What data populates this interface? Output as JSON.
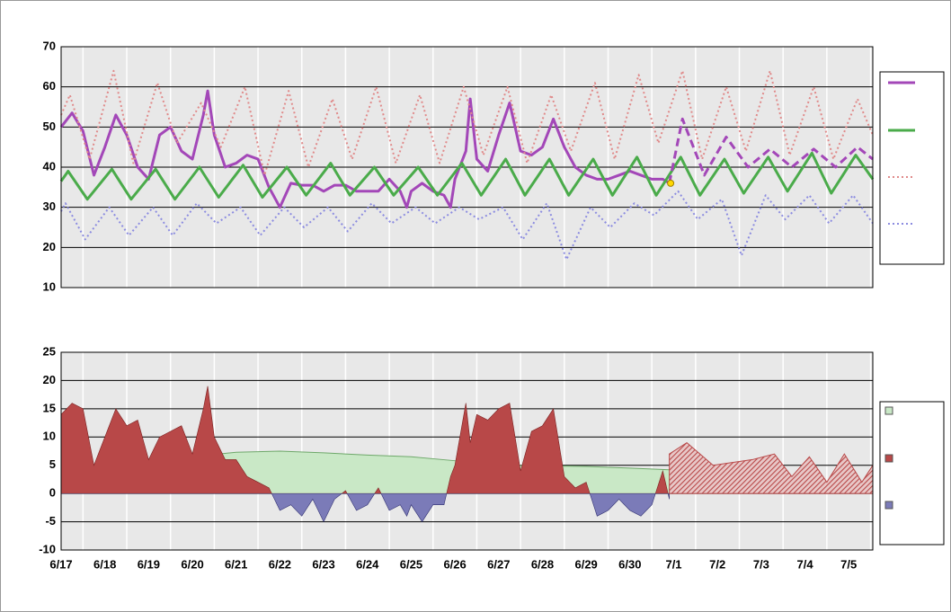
{
  "chart_data": [
    {
      "type": "line",
      "xlim": [
        0,
        18.55
      ],
      "ylim": [
        10,
        70
      ],
      "yticks": [
        10,
        20,
        30,
        40,
        50,
        60,
        70
      ],
      "xgrid": [
        0.5,
        1.5,
        2.5,
        3.5,
        4.5,
        5.5,
        6.5,
        7.5,
        8.5,
        9.5,
        10.5,
        11.5,
        12.5,
        13.5,
        14.5,
        15.5,
        16.5,
        17.5,
        18.5
      ],
      "grid": true,
      "series": [
        {
          "color": "#a347b8",
          "style": "solid",
          "x": [
            0,
            0.25,
            0.5,
            0.75,
            1,
            1.25,
            1.5,
            1.75,
            2,
            2.25,
            2.5,
            2.75,
            3,
            3.25,
            3.35,
            3.5,
            3.75,
            4,
            4.25,
            4.5,
            4.75,
            5,
            5.25,
            5.5,
            5.75,
            6,
            6.25,
            6.5,
            6.75,
            7,
            7.25,
            7.5,
            7.75,
            7.9,
            8,
            8.25,
            8.5,
            8.75,
            8.9,
            9,
            9.25,
            9.35,
            9.5,
            9.75,
            10,
            10.25,
            10.5,
            10.75,
            11,
            11.25,
            11.5,
            11.75,
            12,
            12.25,
            12.5,
            12.75,
            13,
            13.25,
            13.5,
            13.75,
            13.9
          ],
          "values": [
            50,
            53.5,
            49,
            38,
            45,
            53,
            48,
            40,
            37,
            48,
            50,
            44,
            42,
            53,
            59,
            48,
            40,
            41,
            43,
            42,
            35,
            30,
            36,
            35.5,
            35.5,
            34,
            35.5,
            35.5,
            34,
            34,
            34,
            37,
            34,
            30,
            34,
            36,
            34,
            33,
            30,
            37,
            44,
            57,
            42,
            39,
            48,
            56,
            44,
            43,
            45,
            52,
            45,
            40,
            38,
            37,
            37,
            38,
            39,
            38,
            37,
            37,
            36
          ]
        },
        {
          "color": "#4aab4a",
          "style": "solid",
          "x": [
            0,
            0.16,
            0.6,
            1.16,
            1.6,
            2.16,
            2.6,
            3.16,
            3.6,
            4.16,
            4.6,
            5.16,
            5.6,
            6.16,
            6.6,
            7.16,
            7.6,
            8.16,
            8.6,
            9.16,
            9.6,
            10.16,
            10.6,
            11.16,
            11.6,
            12.16,
            12.6,
            13.16,
            13.6,
            14.16,
            14.6,
            15.16,
            15.6,
            16.16,
            16.6,
            17.16,
            17.6,
            18.16,
            18.55
          ],
          "values": [
            36.5,
            39,
            32,
            39.5,
            32,
            39.5,
            32,
            40,
            32.5,
            40.5,
            32.5,
            40,
            33,
            41,
            33,
            40,
            33,
            40,
            33,
            41,
            33,
            42,
            33,
            42,
            33,
            42,
            33,
            42.5,
            33,
            42.5,
            33,
            42,
            33.5,
            42.5,
            34,
            43.5,
            33.5,
            43,
            37
          ]
        },
        {
          "color": "#e08a8a",
          "style": "dotted",
          "x": [
            0,
            0.2,
            0.65,
            1.2,
            1.65,
            2.2,
            2.65,
            3.2,
            3.65,
            4.2,
            4.65,
            5.2,
            5.65,
            6.2,
            6.65,
            7.2,
            7.65,
            8.2,
            8.65,
            9.2,
            9.65,
            10.2,
            10.65,
            11.2,
            11.65,
            12.2,
            12.65,
            13.2,
            13.65,
            14.2,
            14.65,
            15.2,
            15.65,
            16.2,
            16.65,
            17.2,
            17.65,
            18.2,
            18.55
          ],
          "values": [
            53,
            58,
            42,
            64,
            41,
            61,
            46,
            56,
            45,
            60,
            38,
            59,
            40,
            57,
            42,
            60,
            41,
            58,
            41,
            60,
            43,
            60,
            41,
            58,
            44,
            61,
            42,
            63,
            46,
            64,
            42,
            60,
            44,
            64,
            43,
            60,
            42,
            57,
            48
          ]
        },
        {
          "color": "#8c8ce0",
          "style": "dotted",
          "x": [
            0,
            0.1,
            0.55,
            1.1,
            1.55,
            2.1,
            2.55,
            3.1,
            3.55,
            4.1,
            4.55,
            5.1,
            5.55,
            6.1,
            6.55,
            7.1,
            7.55,
            8.1,
            8.55,
            9.1,
            9.55,
            10.1,
            10.55,
            11.1,
            11.55,
            12.1,
            12.55,
            13.1,
            13.55,
            14.1,
            14.55,
            15.1,
            15.55,
            16.1,
            16.55,
            17.1,
            17.55,
            18.1,
            18.55
          ],
          "values": [
            29,
            31,
            22,
            30,
            23,
            30,
            23,
            31,
            26,
            30,
            23,
            30,
            25,
            30,
            24,
            31,
            26,
            30,
            26,
            30,
            27,
            30,
            22,
            31,
            17,
            30,
            25,
            31,
            28,
            34,
            27,
            32,
            18,
            33,
            27,
            33,
            26,
            33,
            26
          ]
        },
        {
          "color": "#a347b8",
          "style": "dashed",
          "legend": false,
          "x": [
            13.9,
            14.2,
            14.7,
            15.2,
            15.7,
            16.2,
            16.7,
            17.2,
            17.7,
            18.2,
            18.55
          ],
          "values": [
            36,
            52,
            38,
            47.5,
            40,
            44.5,
            40,
            44.5,
            40,
            45,
            42
          ]
        }
      ],
      "marker": {
        "x": 13.93,
        "y": 36,
        "color": "#ffd700"
      }
    },
    {
      "type": "area",
      "xlim": [
        0,
        18.55
      ],
      "ylim": [
        -10,
        25
      ],
      "yticks": [
        -10,
        -5,
        0,
        5,
        10,
        15,
        20,
        25
      ],
      "xgrid": [
        0.5,
        1.5,
        2.5,
        3.5,
        4.5,
        5.5,
        6.5,
        7.5,
        8.5,
        9.5,
        10.5,
        11.5,
        12.5,
        13.5,
        14.5,
        15.5,
        16.5,
        17.5,
        18.5
      ],
      "grid": true,
      "xticks": [
        {
          "value": 0,
          "label": "6/17"
        },
        {
          "value": 1,
          "label": "6/18"
        },
        {
          "value": 2,
          "label": "6/19"
        },
        {
          "value": 3,
          "label": "6/20"
        },
        {
          "value": 4,
          "label": "6/21"
        },
        {
          "value": 5,
          "label": "6/22"
        },
        {
          "value": 6,
          "label": "6/23"
        },
        {
          "value": 7,
          "label": "6/24"
        },
        {
          "value": 8,
          "label": "6/25"
        },
        {
          "value": 9,
          "label": "6/26"
        },
        {
          "value": 10,
          "label": "6/27"
        },
        {
          "value": 11,
          "label": "6/28"
        },
        {
          "value": 12,
          "label": "6/29"
        },
        {
          "value": 13,
          "label": "6/30"
        },
        {
          "value": 14,
          "label": "7/1"
        },
        {
          "value": 15,
          "label": "7/2"
        },
        {
          "value": 16,
          "label": "7/3"
        },
        {
          "value": 17,
          "label": "7/4"
        },
        {
          "value": 18,
          "label": "7/5"
        }
      ],
      "series": [
        {
          "color": "#c9e8c6",
          "line_color": "#6ea86a",
          "x": [
            0,
            1,
            2,
            3,
            4,
            5,
            6,
            7,
            8,
            9,
            10,
            11,
            12,
            13,
            13.9
          ],
          "values": [
            3.5,
            4.5,
            5.5,
            6.5,
            7.3,
            7.5,
            7.2,
            6.8,
            6.5,
            5.8,
            5,
            4.9,
            4.8,
            4.5,
            4.2
          ]
        },
        {
          "color": "#b84848",
          "negative_color": "#7b7bb8",
          "x": [
            0,
            0.25,
            0.5,
            0.75,
            1,
            1.25,
            1.5,
            1.75,
            2,
            2.25,
            2.5,
            2.75,
            3,
            3.25,
            3.35,
            3.5,
            3.75,
            4,
            4.25,
            4.5,
            4.75,
            5,
            5.25,
            5.5,
            5.75,
            6,
            6.25,
            6.5,
            6.75,
            7,
            7.25,
            7.5,
            7.75,
            7.9,
            8,
            8.25,
            8.5,
            8.75,
            8.9,
            9,
            9.25,
            9.35,
            9.5,
            9.75,
            10,
            10.25,
            10.5,
            10.75,
            11,
            11.25,
            11.5,
            11.75,
            12,
            12.25,
            12.5,
            12.75,
            13,
            13.25,
            13.5,
            13.75,
            13.9
          ],
          "values": [
            14,
            16,
            15,
            5,
            10,
            15,
            12,
            13,
            6,
            10,
            11,
            12,
            7,
            15,
            19,
            10,
            6,
            6,
            3,
            2,
            1,
            -3,
            -2,
            -4,
            -1,
            -5,
            -1,
            0.5,
            -3,
            -2,
            1,
            -3,
            -2,
            -4,
            -2,
            -5,
            -2,
            -2,
            3,
            5,
            16,
            9,
            14,
            13,
            15,
            16,
            4,
            11,
            12,
            15,
            3,
            1,
            2,
            -4,
            -3,
            -1,
            -3,
            -4,
            -2,
            4,
            -1
          ]
        },
        {
          "color": "#b84848",
          "hatched": true,
          "legend": false,
          "x": [
            13.9,
            14.3,
            14.9,
            15.8,
            16.3,
            16.7,
            17.1,
            17.5,
            17.9,
            18.3,
            18.55
          ],
          "values": [
            7,
            9,
            5,
            6,
            7,
            3,
            6.5,
            2,
            7,
            2,
            5
          ]
        }
      ]
    }
  ]
}
